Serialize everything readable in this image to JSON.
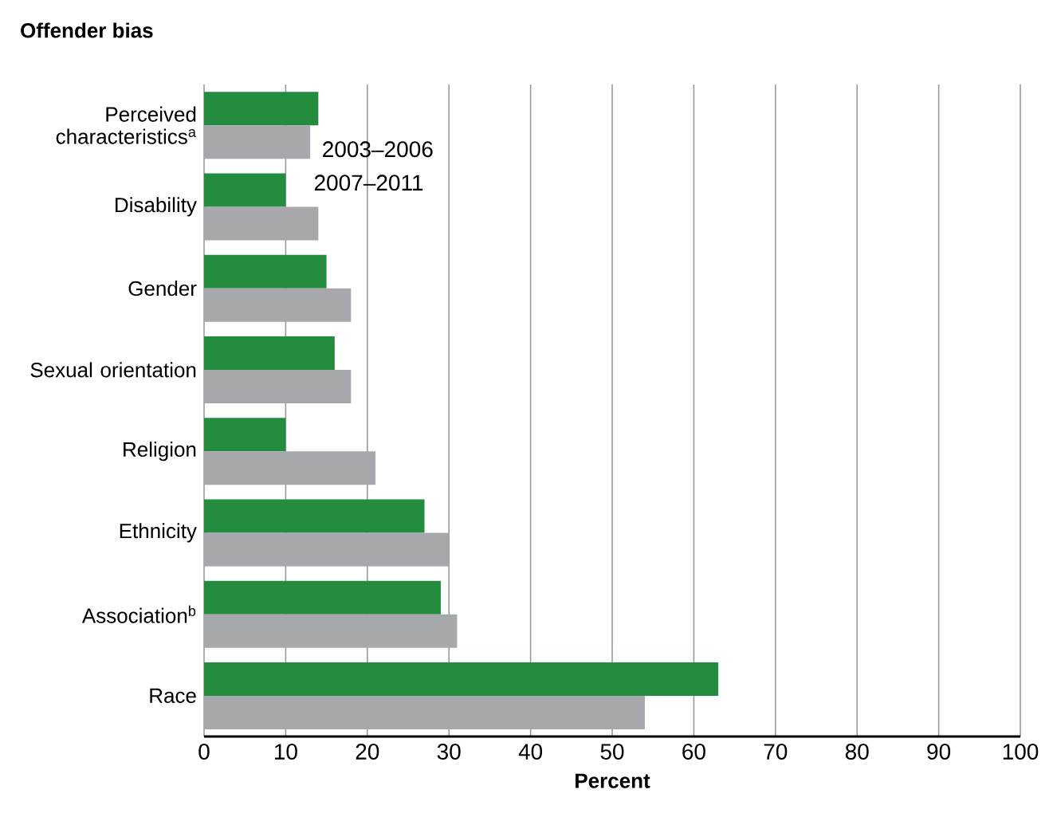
{
  "chart_data": {
    "type": "bar",
    "orientation": "horizontal",
    "title": "Offender bias",
    "xlabel": "Percent",
    "categories": [
      "Perceived characteristics$^{a}$",
      "Disability",
      "Gender",
      "Sexual orientation",
      "Religion",
      "Ethnicity",
      "Association$^{b}$",
      "Race"
    ],
    "series": [
      {
        "name": "2003–2006",
        "color": "#248c3f",
        "values": [
          14,
          10,
          15,
          16,
          10,
          27,
          29,
          63
        ]
      },
      {
        "name": "2007–2011",
        "color": "#a7a8ab",
        "values": [
          13,
          14,
          18,
          18,
          21,
          30,
          31,
          54
        ]
      }
    ],
    "xlim": [
      0,
      100
    ],
    "xticks": [
      0,
      10,
      20,
      30,
      40,
      50,
      60,
      70,
      80,
      90,
      100
    ],
    "grid": "x",
    "legend": "top left"
  }
}
